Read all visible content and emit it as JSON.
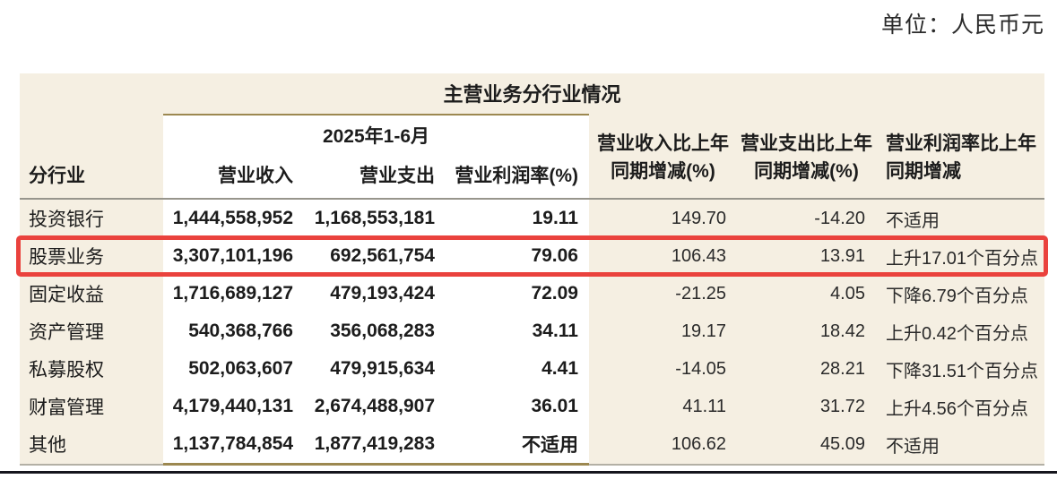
{
  "unit_label": "单位：人民币元",
  "table": {
    "title": "主营业务分行业情况",
    "period_header": "2025年1-6月",
    "col_industry": "分行业",
    "sub_headers": [
      "营业收入",
      "营业支出",
      "营业利润率(%)"
    ],
    "yoy_headers": [
      {
        "line1": "营业收入比上年",
        "line2": "同期增减(%)"
      },
      {
        "line1": "营业支出比上年",
        "line2": "同期增减(%)"
      },
      {
        "line1": "营业利润率比上年",
        "line2": "同期增减"
      }
    ],
    "rows": [
      {
        "industry": "投资银行",
        "revenue": "1,444,558,952",
        "expense": "1,168,553,181",
        "margin": "19.11",
        "revenue_yoy": "149.70",
        "expense_yoy": "-14.20",
        "margin_yoy": "不适用",
        "highlighted": false
      },
      {
        "industry": "股票业务",
        "revenue": "3,307,101,196",
        "expense": "692,561,754",
        "margin": "79.06",
        "revenue_yoy": "106.43",
        "expense_yoy": "13.91",
        "margin_yoy": "上升17.01个百分点",
        "highlighted": true
      },
      {
        "industry": "固定收益",
        "revenue": "1,716,689,127",
        "expense": "479,193,424",
        "margin": "72.09",
        "revenue_yoy": "-21.25",
        "expense_yoy": "4.05",
        "margin_yoy": "下降6.79个百分点",
        "highlighted": false
      },
      {
        "industry": "资产管理",
        "revenue": "540,368,766",
        "expense": "356,068,283",
        "margin": "34.11",
        "revenue_yoy": "19.17",
        "expense_yoy": "18.42",
        "margin_yoy": "上升0.42个百分点",
        "highlighted": false
      },
      {
        "industry": "私募股权",
        "revenue": "502,063,607",
        "expense": "479,915,634",
        "margin": "4.41",
        "revenue_yoy": "-14.05",
        "expense_yoy": "28.21",
        "margin_yoy": "下降31.51个百分点",
        "highlighted": false
      },
      {
        "industry": "财富管理",
        "revenue": "4,179,440,131",
        "expense": "2,674,488,907",
        "margin": "36.01",
        "revenue_yoy": "41.11",
        "expense_yoy": "31.72",
        "margin_yoy": "上升4.56个百分点",
        "highlighted": false
      },
      {
        "industry": "其他",
        "revenue": "1,137,784,854",
        "expense": "1,877,419,283",
        "margin": "不适用",
        "revenue_yoy": "106.62",
        "expense_yoy": "45.09",
        "margin_yoy": "不适用",
        "highlighted": false
      }
    ],
    "colors": {
      "table_bg": "#f5efe2",
      "panel_gold": "#9c8850",
      "highlight_red": "#ea423d",
      "separator_gray": "#97958c"
    }
  }
}
